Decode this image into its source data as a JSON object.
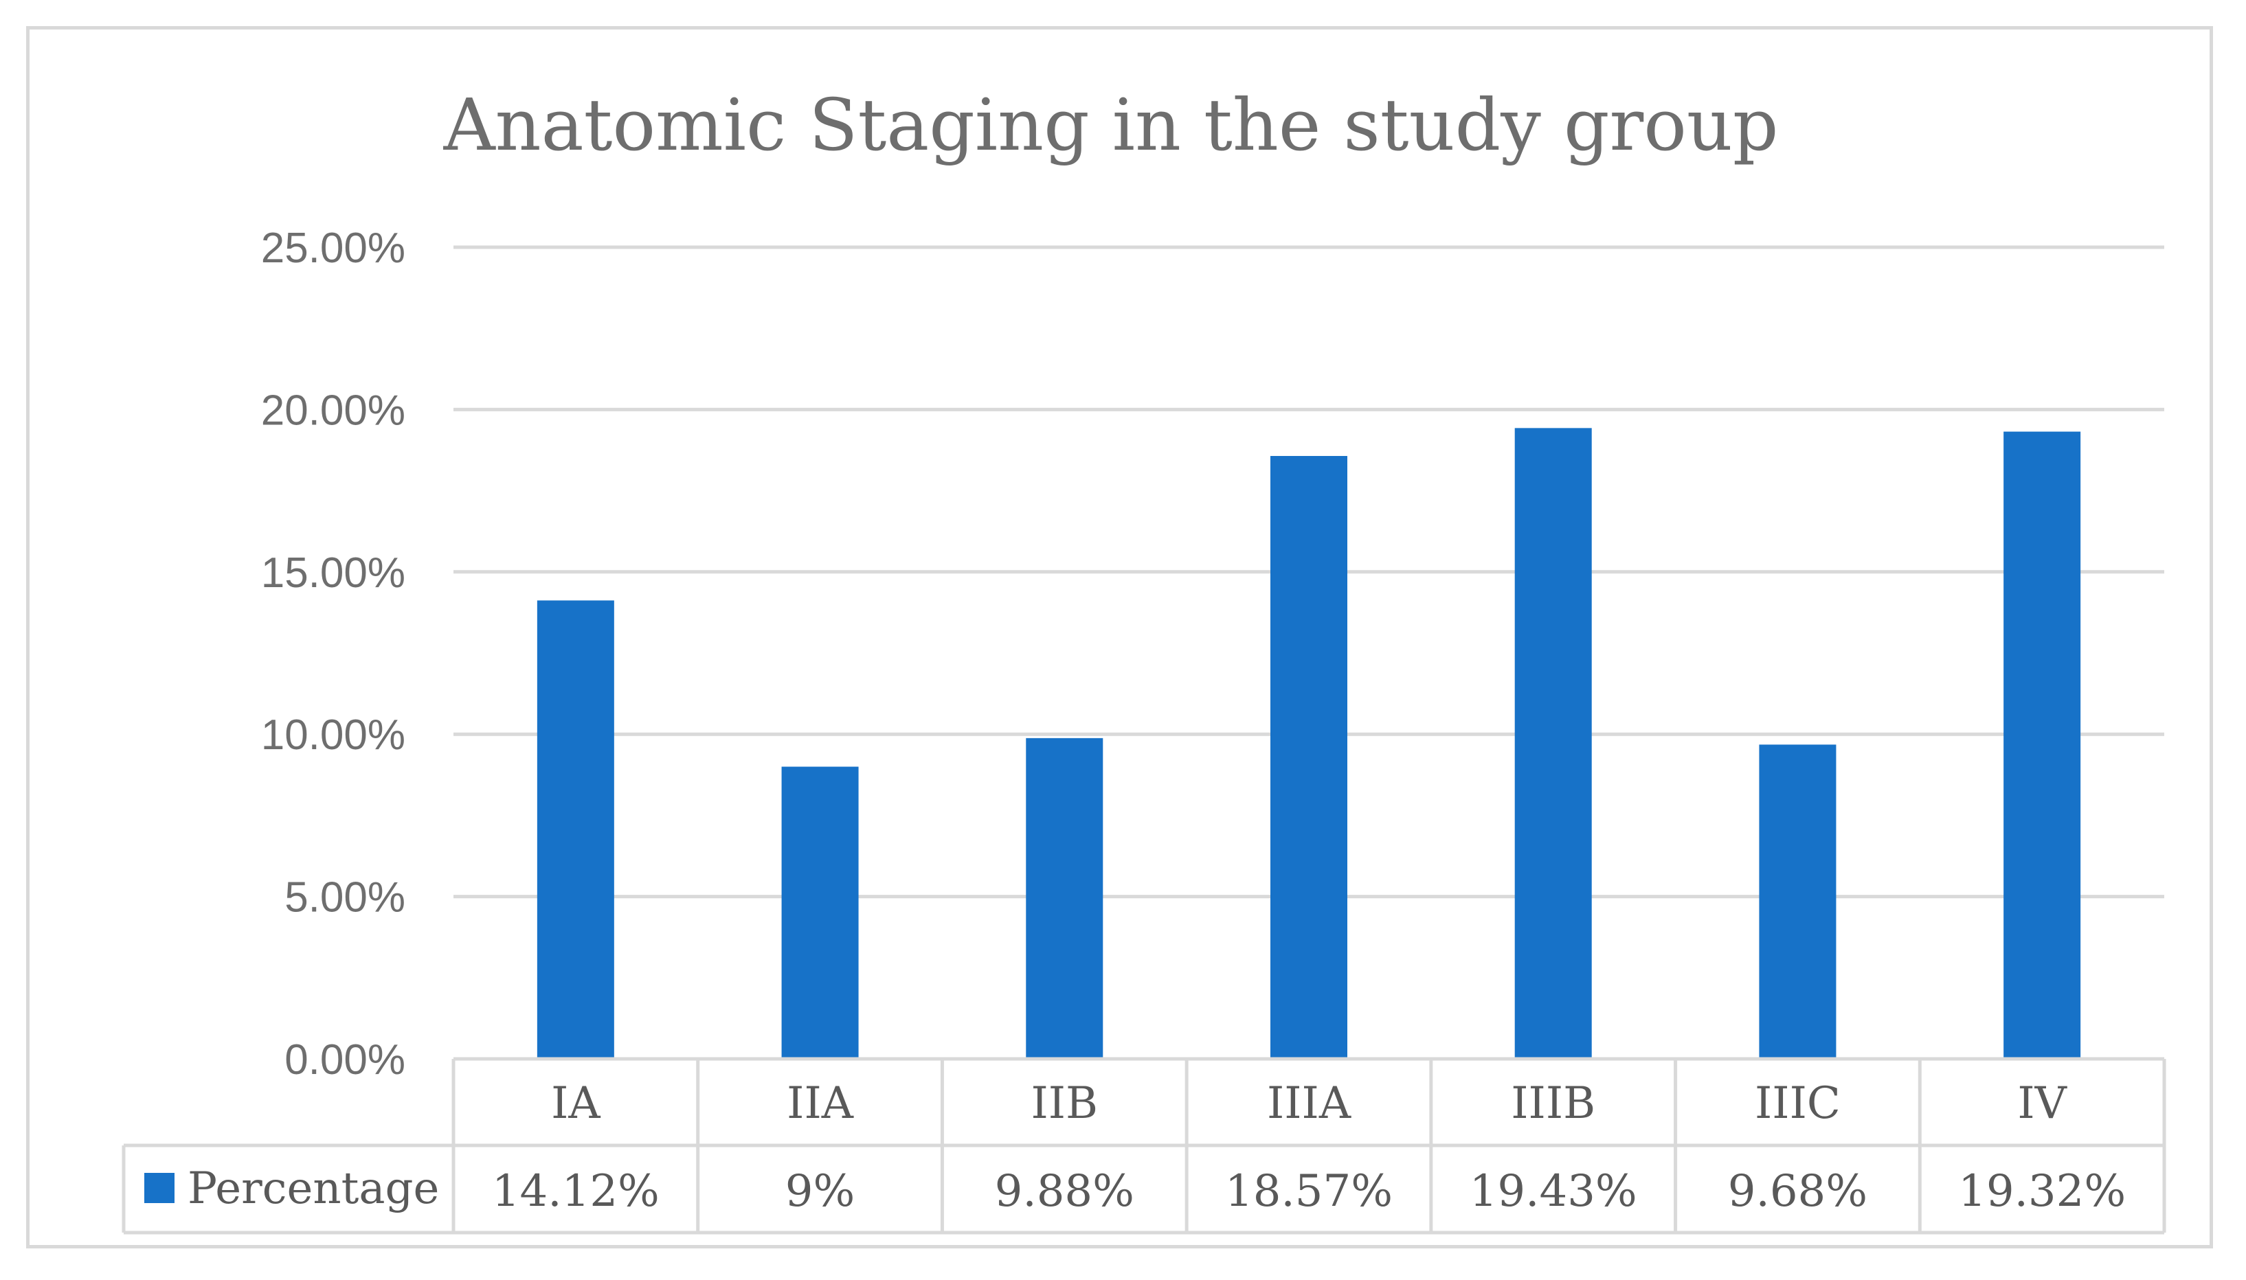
{
  "chart_data": {
    "type": "bar",
    "title": "Anatomic Staging in the study group",
    "categories": [
      "IA",
      "IIA",
      "IIB",
      "IIIA",
      "IIIB",
      "IIIC",
      "IV"
    ],
    "series": [
      {
        "name": "Percentage",
        "values": [
          14.12,
          9,
          9.88,
          18.57,
          19.43,
          9.68,
          19.32
        ],
        "labels": [
          "14.12%",
          "9%",
          "9.88%",
          "18.57%",
          "19.43%",
          "9.68%",
          "19.32%"
        ],
        "color": "#1772c8"
      }
    ],
    "ylim": [
      0,
      25
    ],
    "yticks": [
      0,
      5,
      10,
      15,
      20,
      25
    ],
    "ytick_labels": [
      "0.00%",
      "5.00%",
      "10.00%",
      "15.00%",
      "20.00%",
      "25.00%"
    ],
    "xlabel": "",
    "ylabel": "",
    "grid": true,
    "data_table": true,
    "legend_position": "data-table-left"
  },
  "colors": {
    "gridline": "#d9d9d9",
    "table_border": "#d9d9d9",
    "text": "#6e6e6e"
  }
}
